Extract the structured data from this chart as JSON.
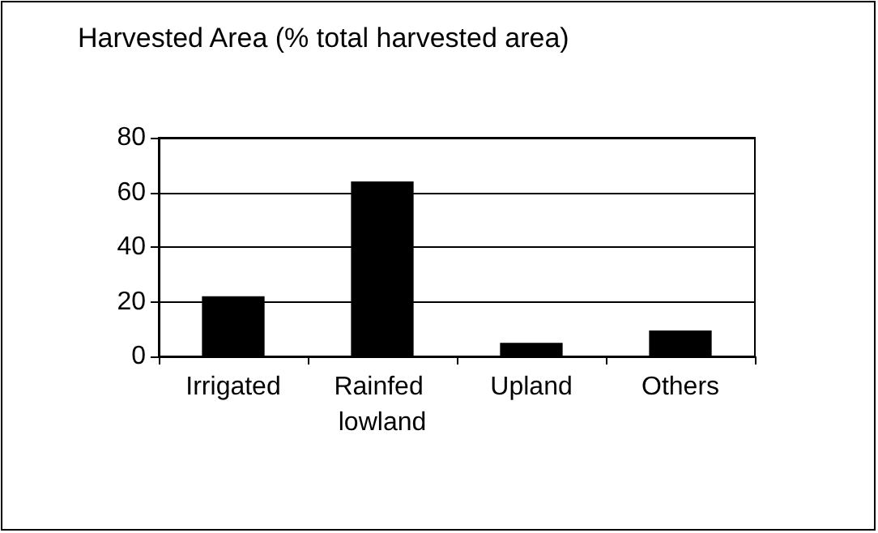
{
  "chart_data": {
    "type": "bar",
    "title": "Harvested Area (% total harvested area)",
    "categories": [
      "Irrigated",
      "Rainfed lowland",
      "Upland",
      "Others"
    ],
    "values": [
      22,
      64,
      5,
      9.5
    ],
    "color": "#000000",
    "ylim": [
      0,
      80
    ],
    "yticks": [
      0,
      20,
      40,
      60,
      80
    ],
    "grid": "y"
  }
}
